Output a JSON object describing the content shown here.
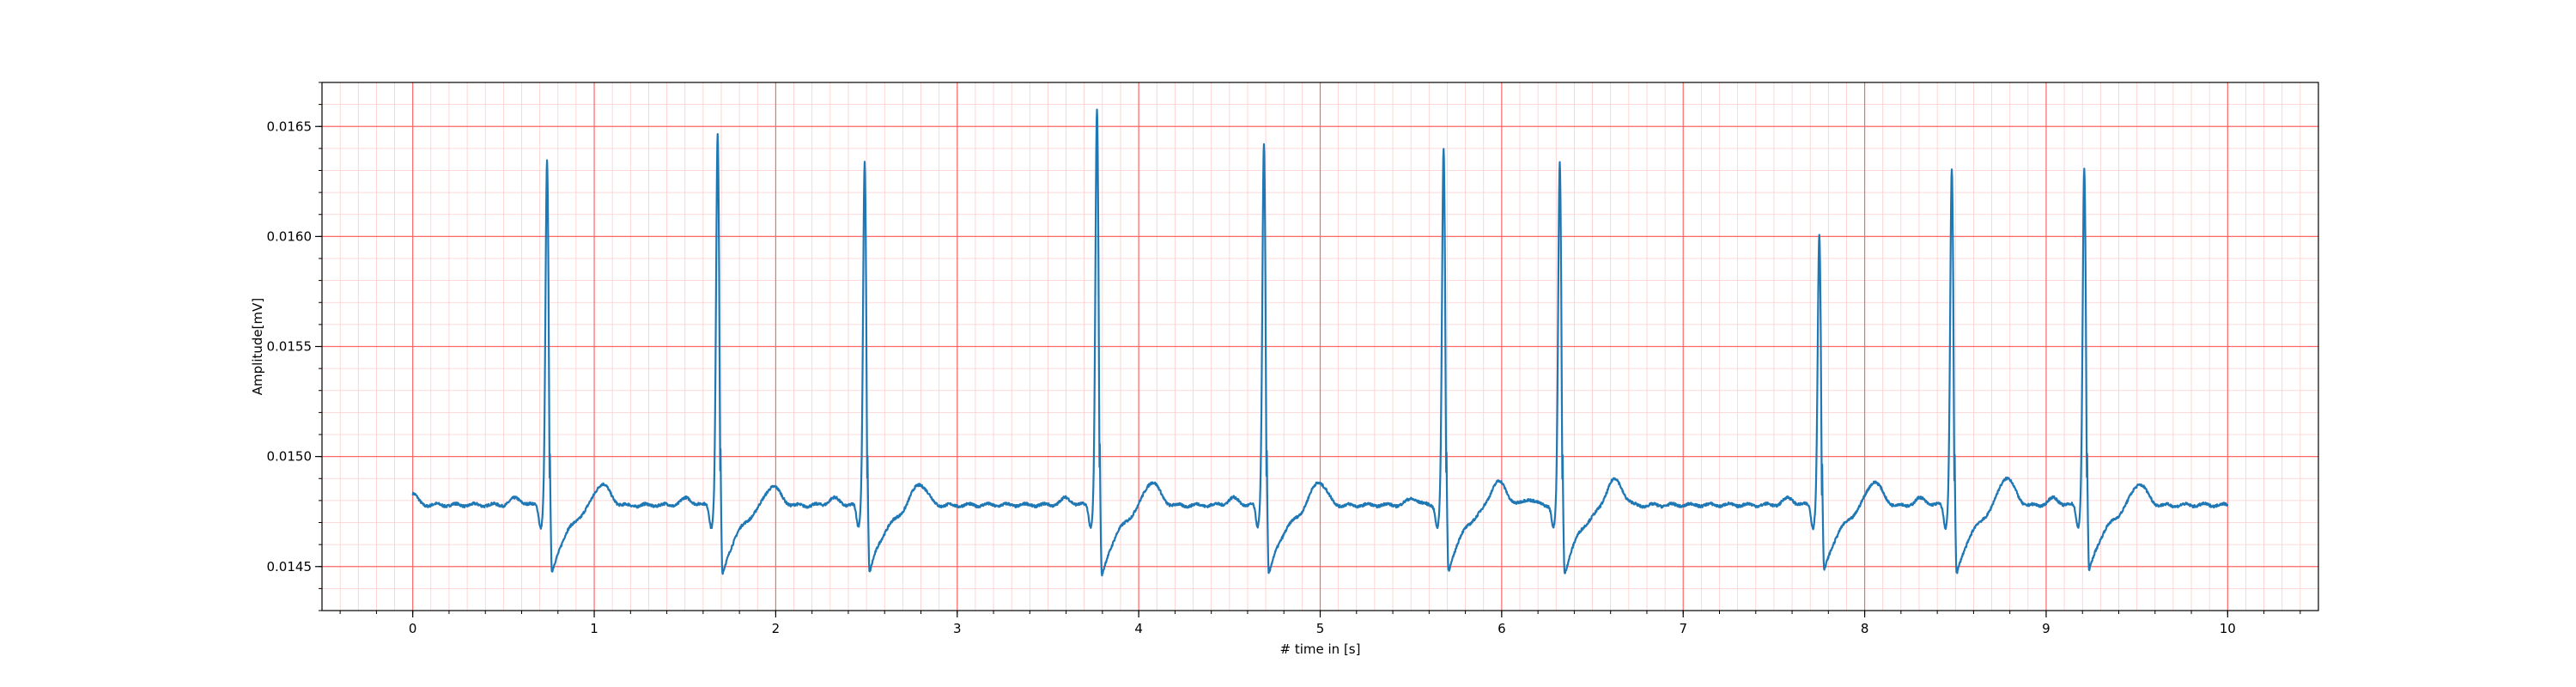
{
  "chart_data": {
    "type": "line",
    "title": "",
    "xlabel": "# time in [s]",
    "ylabel": "Amplitude[mV]",
    "xlim": [
      -0.5,
      10.5
    ],
    "ylim": [
      0.0143,
      0.0167
    ],
    "x_ticks": [
      0,
      1,
      2,
      3,
      4,
      5,
      6,
      7,
      8,
      9,
      10
    ],
    "x_tick_labels": [
      "0",
      "1",
      "2",
      "3",
      "4",
      "5",
      "6",
      "7",
      "8",
      "9",
      "10"
    ],
    "y_ticks": [
      0.0145,
      0.015,
      0.0155,
      0.016,
      0.0165
    ],
    "y_tick_labels": [
      "0.0145",
      "0.0150",
      "0.0155",
      "0.0160",
      "0.0165"
    ],
    "grid": true,
    "grid_major_color": "#ff6666",
    "grid_minor_color": "#ffcccc",
    "line_color": "#1f77b4",
    "baseline": 0.01478,
    "series": [
      {
        "name": "",
        "beats": [
          {
            "t": 0.74,
            "peak": 0.01634,
            "trough": 0.01442,
            "t_wave": 0.01488
          },
          {
            "t": 1.68,
            "peak": 0.01646,
            "trough": 0.01441,
            "t_wave": 0.01487
          },
          {
            "t": 2.49,
            "peak": 0.01634,
            "trough": 0.01442,
            "t_wave": 0.01488
          },
          {
            "t": 3.77,
            "peak": 0.01658,
            "trough": 0.0144,
            "t_wave": 0.01489
          },
          {
            "t": 4.69,
            "peak": 0.01643,
            "trough": 0.01441,
            "t_wave": 0.01489
          },
          {
            "t": 5.68,
            "peak": 0.01639,
            "trough": 0.01443,
            "t_wave": 0.01489
          },
          {
            "t": 6.32,
            "peak": 0.01633,
            "trough": 0.01442,
            "t_wave": 0.0149
          },
          {
            "t": 7.75,
            "peak": 0.01601,
            "trough": 0.01443,
            "t_wave": 0.01489
          },
          {
            "t": 8.48,
            "peak": 0.01631,
            "trough": 0.01441,
            "t_wave": 0.01491
          },
          {
            "t": 9.21,
            "peak": 0.01631,
            "trough": 0.01443,
            "t_wave": 0.01488
          }
        ],
        "t_start": 0,
        "t_end": 10,
        "start_value": 0.01483,
        "end_value": 0.01479
      }
    ]
  }
}
